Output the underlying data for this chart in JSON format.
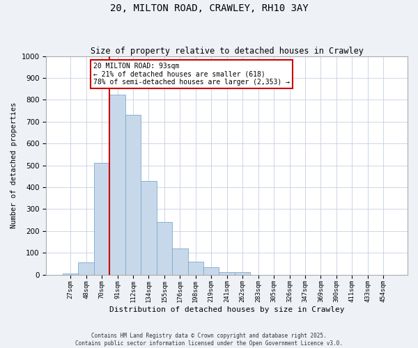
{
  "title": "20, MILTON ROAD, CRAWLEY, RH10 3AY",
  "subtitle": "Size of property relative to detached houses in Crawley",
  "xlabel": "Distribution of detached houses by size in Crawley",
  "ylabel": "Number of detached properties",
  "bin_labels": [
    "27sqm",
    "48sqm",
    "70sqm",
    "91sqm",
    "112sqm",
    "134sqm",
    "155sqm",
    "176sqm",
    "198sqm",
    "219sqm",
    "241sqm",
    "262sqm",
    "283sqm",
    "305sqm",
    "326sqm",
    "347sqm",
    "369sqm",
    "390sqm",
    "411sqm",
    "433sqm",
    "454sqm"
  ],
  "bin_values": [
    5,
    55,
    510,
    825,
    730,
    430,
    240,
    120,
    58,
    35,
    12,
    12,
    0,
    0,
    0,
    0,
    0,
    0,
    0,
    0,
    0
  ],
  "bar_color": "#c8d8eb",
  "bar_edge_color": "#7aaac8",
  "property_line_color": "#cc0000",
  "annotation_text": "20 MILTON ROAD: 93sqm\n← 21% of detached houses are smaller (618)\n78% of semi-detached houses are larger (2,353) →",
  "annotation_box_color": "#cc0000",
  "ylim": [
    0,
    1000
  ],
  "yticks": [
    0,
    100,
    200,
    300,
    400,
    500,
    600,
    700,
    800,
    900,
    1000
  ],
  "footer_line1": "Contains HM Land Registry data © Crown copyright and database right 2025.",
  "footer_line2": "Contains public sector information licensed under the Open Government Licence v3.0.",
  "bg_color": "#eef2f7",
  "plot_bg_color": "#ffffff",
  "grid_color": "#c5cfe0"
}
